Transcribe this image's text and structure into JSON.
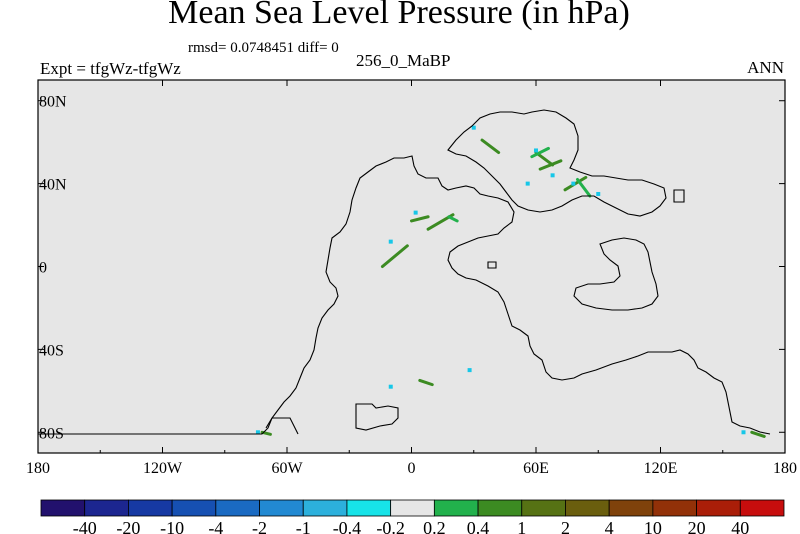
{
  "chart_data": {
    "type": "heatmap",
    "title": "Mean Sea Level Pressure (in hPa)",
    "stats": "rmsd= 0.0748451 diff= 0",
    "left_label": "Expt = tfgWz-tfgWz",
    "center_label": "256_0_MaBP",
    "right_label": "ANN",
    "x_ticks": [
      {
        "value": -180,
        "label": "180"
      },
      {
        "value": -120,
        "label": "120W"
      },
      {
        "value": -60,
        "label": "60W"
      },
      {
        "value": 0,
        "label": "0"
      },
      {
        "value": 60,
        "label": "60E"
      },
      {
        "value": 120,
        "label": "120E"
      },
      {
        "value": 180,
        "label": "180"
      }
    ],
    "y_ticks": [
      {
        "value": 80,
        "label": "80N"
      },
      {
        "value": 40,
        "label": "40N"
      },
      {
        "value": 0,
        "label": "0"
      },
      {
        "value": -40,
        "label": "40S"
      },
      {
        "value": -80,
        "label": "80S"
      }
    ],
    "xlim": [
      -180,
      180
    ],
    "ylim": [
      -90,
      90
    ],
    "colorbar": {
      "labels": [
        "-40",
        "-20",
        "-10",
        "-4",
        "-2",
        "-1",
        "-0.4",
        "-0.2",
        "0.2",
        "0.4",
        "1",
        "2",
        "4",
        "10",
        "20",
        "40"
      ],
      "colors": [
        "#22116d",
        "#1c2690",
        "#1639a3",
        "#1650b2",
        "#1a6ac2",
        "#2289d2",
        "#2cb0dc",
        "#17e3e8",
        "#e6e6e6",
        "#22b14c",
        "#3c8b22",
        "#567214",
        "#6a5e0e",
        "#7f420b",
        "#923108",
        "#aa1e08",
        "#c70d0d"
      ]
    },
    "anomalies": [
      {
        "x1": 34,
        "y1": 61,
        "x2": 42,
        "y2": 55,
        "color": "#3c8b22"
      },
      {
        "x1": 60,
        "y1": 55,
        "x2": 68,
        "y2": 49,
        "color": "#3c8b22"
      },
      {
        "x1": 62,
        "y1": 47,
        "x2": 72,
        "y2": 51,
        "color": "#3c8b22"
      },
      {
        "x1": 74,
        "y1": 37,
        "x2": 84,
        "y2": 43,
        "color": "#3c8b22"
      },
      {
        "x1": 0,
        "y1": 22,
        "x2": 8,
        "y2": 24,
        "color": "#3c8b22"
      },
      {
        "x1": 8,
        "y1": 18,
        "x2": 20,
        "y2": 25,
        "color": "#3c8b22"
      },
      {
        "x1": -14,
        "y1": 0,
        "x2": -2,
        "y2": 10,
        "color": "#3c8b22"
      },
      {
        "x1": 4,
        "y1": -55,
        "x2": 10,
        "y2": -57,
        "color": "#3c8b22"
      },
      {
        "x1": 164,
        "y1": -80,
        "x2": 170,
        "y2": -82,
        "color": "#3c8b22"
      },
      {
        "x1": -72,
        "y1": -80,
        "x2": -68,
        "y2": -81,
        "color": "#3c8b22"
      },
      {
        "x1": 22,
        "y1": 22,
        "x2": 18,
        "y2": 24,
        "color": "#22b14c"
      },
      {
        "x1": 58,
        "y1": 53,
        "x2": 66,
        "y2": 57,
        "color": "#22b14c"
      },
      {
        "x1": 80,
        "y1": 42,
        "x2": 86,
        "y2": 34,
        "color": "#22b14c"
      }
    ],
    "blue_dots": [
      {
        "x": 60,
        "y": 56
      },
      {
        "x": 68,
        "y": 44
      },
      {
        "x": 78,
        "y": 40
      },
      {
        "x": 56,
        "y": 40
      },
      {
        "x": 90,
        "y": 35
      },
      {
        "x": 2,
        "y": 26
      },
      {
        "x": -10,
        "y": 12
      },
      {
        "x": 30,
        "y": 67
      },
      {
        "x": -74,
        "y": -80
      },
      {
        "x": 160,
        "y": -80
      },
      {
        "x": 28,
        "y": -50
      },
      {
        "x": -10,
        "y": -58
      }
    ]
  }
}
